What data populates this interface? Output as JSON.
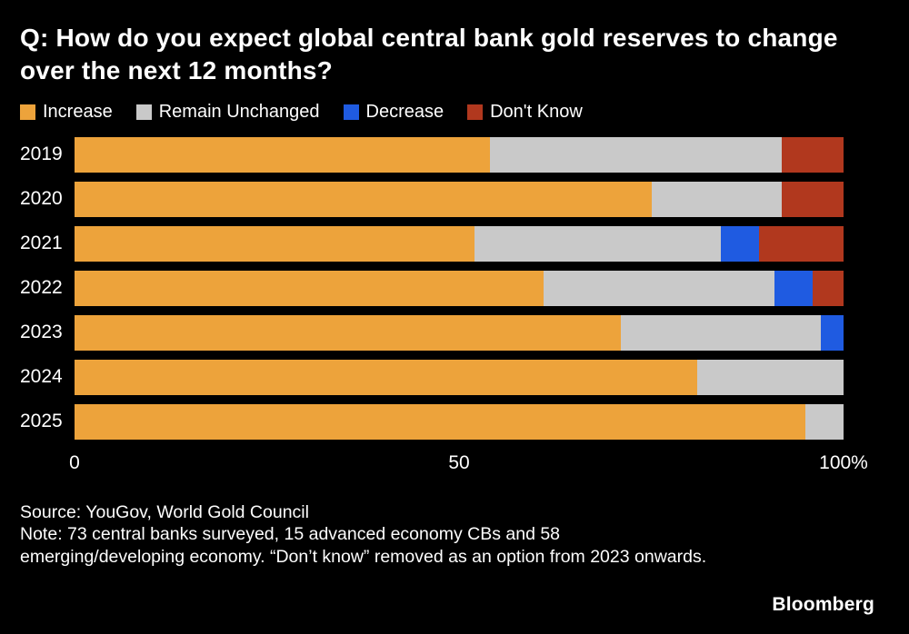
{
  "title": "Q: How do you expect global central bank gold reserves to change over the next 12 months?",
  "chart_data": {
    "type": "bar",
    "orientation": "horizontal",
    "stacked": true,
    "categories": [
      "2019",
      "2020",
      "2021",
      "2022",
      "2023",
      "2024",
      "2025"
    ],
    "series": [
      {
        "name": "Increase",
        "color": "#EDA33B",
        "values": [
          54,
          75,
          52,
          61,
          71,
          81,
          95
        ]
      },
      {
        "name": "Remain Unchanged",
        "color": "#C9C9C9",
        "values": [
          38,
          17,
          32,
          30,
          26,
          19,
          5
        ]
      },
      {
        "name": "Decrease",
        "color": "#1F5BE1",
        "values": [
          0,
          0,
          5,
          5,
          3,
          0,
          0
        ]
      },
      {
        "name": "Don't Know",
        "color": "#B1381E",
        "values": [
          8,
          8,
          11,
          4,
          0,
          0,
          0
        ]
      }
    ],
    "xlim": [
      0,
      100
    ],
    "x_ticks": [
      {
        "label": "0",
        "value": 0
      },
      {
        "label": "50",
        "value": 50
      },
      {
        "label": "100%",
        "value": 100
      }
    ],
    "legend_position": "top",
    "grid": false,
    "xlabel": "",
    "ylabel": ""
  },
  "source": "Source: YouGov, World Gold Council",
  "note": "Note: 73 central banks surveyed, 15 advanced economy CBs and 58 emerging/developing economy. “Don’t know” removed as an option from 2023 onwards.",
  "brand": "Bloomberg"
}
